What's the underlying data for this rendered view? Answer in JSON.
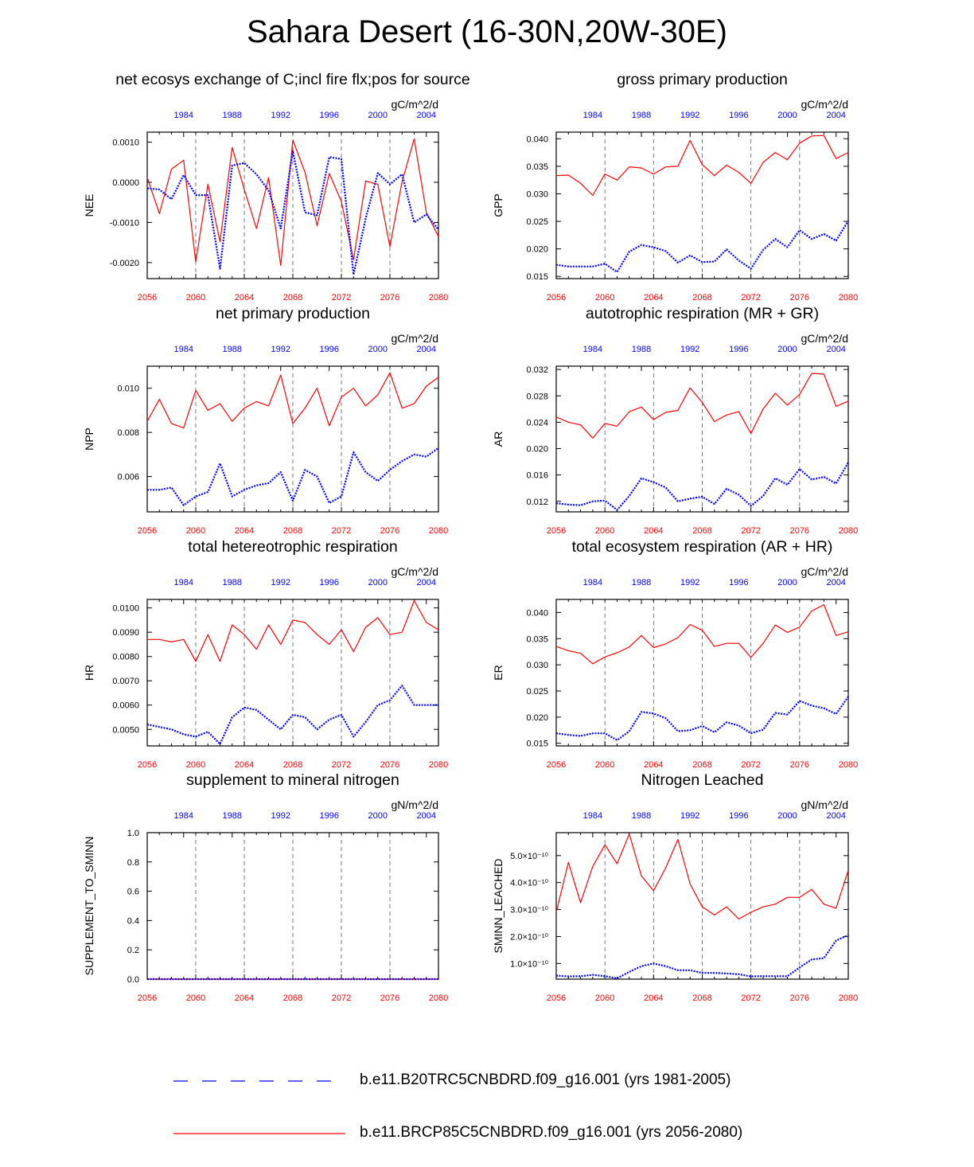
{
  "title": "Sahara Desert (16-30N,20W-30E)",
  "colors": {
    "future": "#ff0000",
    "historical": "#0000ff"
  },
  "legend": [
    {
      "label": "b.e11.B20TRC5CNBDRD.f09_g16.001 (yrs 1981-2005)",
      "color": "#0000ff",
      "style": "dashed"
    },
    {
      "label": "b.e11.BRCP85C5CNBDRD.f09_g16.001 (yrs 2056-2080)",
      "color": "#ff0000",
      "style": "solid"
    }
  ],
  "chart_data": [
    {
      "type": "line",
      "title": "net ecosys exchange of C;incl fire flx;pos for source",
      "ylabel": "NEE",
      "units": "gC/m^2/d",
      "xlim": [
        2056,
        2080
      ],
      "ylim": [
        -0.0024,
        0.00125
      ],
      "yticks": [
        0.001,
        0.0,
        -0.001,
        -0.002
      ],
      "yticklabels": [
        "0.0010",
        "0.0000",
        "-0.0010",
        "-0.0020"
      ],
      "xticks": [
        2056,
        2060,
        2064,
        2068,
        2072,
        2076,
        2080
      ],
      "top_ticks": [
        1984,
        1988,
        1992,
        1996,
        2000,
        2004
      ],
      "series": [
        {
          "name": "b.e11.BRCP85C5CNBDRD.f09_g16.001 (yrs 2056-2080)",
          "color": "#ff0000",
          "style": "solid",
          "values": [
            0.00012,
            -0.00078,
            0.00033,
            0.00055,
            -0.00198,
            -5e-05,
            -0.00148,
            0.00087,
            -0.00018,
            -0.00115,
            0.00012,
            -0.00207,
            0.00105,
            0.00025,
            -0.00108,
            0.00022,
            -0.00048,
            -0.00193,
            3e-05,
            -5e-05,
            -0.0016,
            2e-05,
            0.00108,
            -0.00075,
            -0.00135
          ]
        },
        {
          "name": "b.e11.B20TRC5CNBDRD.f09_g16.001 (yrs 1981-2005)",
          "color": "#0000ff",
          "style": "dashed",
          "values": [
            -0.00015,
            -0.00018,
            -0.00042,
            0.00018,
            -0.00032,
            -0.00032,
            -0.00215,
            0.00042,
            0.00048,
            0.0002,
            -0.0002,
            -0.00115,
            0.00078,
            -0.00075,
            -0.00082,
            0.00063,
            0.00058,
            -0.0023,
            -0.0009,
            0.00023,
            -5e-05,
            0.0002,
            -0.001,
            -0.0008,
            -0.00118
          ]
        }
      ]
    },
    {
      "type": "line",
      "title": "gross primary production",
      "ylabel": "GPP",
      "units": "gC/m^2/d",
      "xlim": [
        2056,
        2080
      ],
      "ylim": [
        0.0146,
        0.0412
      ],
      "yticks": [
        0.04,
        0.035,
        0.03,
        0.025,
        0.02,
        0.015
      ],
      "yticklabels": [
        "0.040",
        "0.035",
        "0.030",
        "0.025",
        "0.020",
        "0.015"
      ],
      "xticks": [
        2056,
        2060,
        2064,
        2068,
        2072,
        2076,
        2080
      ],
      "top_ticks": [
        1984,
        1988,
        1992,
        1996,
        2000,
        2004
      ],
      "series": [
        {
          "name": "b.e11.BRCP85C5CNBDRD.f09_g16.001 (yrs 2056-2080)",
          "color": "#ff0000",
          "style": "solid",
          "values": [
            0.0333,
            0.0334,
            0.0319,
            0.0297,
            0.0336,
            0.0325,
            0.0349,
            0.0347,
            0.0336,
            0.0349,
            0.035,
            0.0397,
            0.0353,
            0.0333,
            0.0352,
            0.0339,
            0.0319,
            0.0357,
            0.0375,
            0.0362,
            0.0392,
            0.0405,
            0.0406,
            0.0364,
            0.0375
          ]
        },
        {
          "name": "b.e11.B20TRC5CNBDRD.f09_g16.001 (yrs 1981-2005)",
          "color": "#0000ff",
          "style": "dashed",
          "values": [
            0.0171,
            0.0168,
            0.0168,
            0.0168,
            0.0173,
            0.0158,
            0.0195,
            0.0207,
            0.0203,
            0.0196,
            0.0175,
            0.0188,
            0.0176,
            0.0177,
            0.0199,
            0.0179,
            0.0164,
            0.0198,
            0.0218,
            0.0203,
            0.0234,
            0.0218,
            0.0227,
            0.0215,
            0.0251
          ]
        }
      ]
    },
    {
      "type": "line",
      "title": "net primary production",
      "ylabel": "NPP",
      "units": "gC/m^2/d",
      "xlim": [
        2056,
        2080
      ],
      "ylim": [
        0.0044,
        0.011
      ],
      "yticks": [
        0.01,
        0.008,
        0.006
      ],
      "yticklabels": [
        "0.010",
        "0.008",
        "0.006"
      ],
      "xticks": [
        2056,
        2060,
        2064,
        2068,
        2072,
        2076,
        2080
      ],
      "top_ticks": [
        1984,
        1988,
        1992,
        1996,
        2000,
        2004
      ],
      "series": [
        {
          "name": "b.e11.BRCP85C5CNBDRD.f09_g16.001 (yrs 2056-2080)",
          "color": "#ff0000",
          "style": "solid",
          "values": [
            0.0085,
            0.0095,
            0.0084,
            0.0082,
            0.0099,
            0.009,
            0.0093,
            0.0085,
            0.0091,
            0.0094,
            0.0092,
            0.0106,
            0.0084,
            0.0091,
            0.01,
            0.0083,
            0.0096,
            0.01,
            0.0092,
            0.0097,
            0.0107,
            0.0091,
            0.0093,
            0.0101,
            0.0105
          ]
        },
        {
          "name": "b.e11.B20TRC5CNBDRD.f09_g16.001 (yrs 1981-2005)",
          "color": "#0000ff",
          "style": "dashed",
          "values": [
            0.0054,
            0.0054,
            0.0055,
            0.0047,
            0.0051,
            0.0053,
            0.0066,
            0.0051,
            0.0054,
            0.0056,
            0.0057,
            0.0062,
            0.0049,
            0.0063,
            0.006,
            0.0048,
            0.0051,
            0.0071,
            0.0062,
            0.0058,
            0.0063,
            0.0067,
            0.007,
            0.0069,
            0.0073
          ]
        }
      ]
    },
    {
      "type": "line",
      "title": "autotrophic respiration (MR + GR)",
      "ylabel": "AR",
      "units": "gC/m^2/d",
      "xlim": [
        2056,
        2080
      ],
      "ylim": [
        0.0104,
        0.0325
      ],
      "yticks": [
        0.032,
        0.028,
        0.024,
        0.02,
        0.016,
        0.012
      ],
      "yticklabels": [
        "0.032",
        "0.028",
        "0.024",
        "0.020",
        "0.016",
        "0.012"
      ],
      "xticks": [
        2056,
        2060,
        2064,
        2068,
        2072,
        2076,
        2080
      ],
      "top_ticks": [
        1984,
        1988,
        1992,
        1996,
        2000,
        2004
      ],
      "series": [
        {
          "name": "b.e11.BRCP85C5CNBDRD.f09_g16.001 (yrs 2056-2080)",
          "color": "#ff0000",
          "style": "solid",
          "values": [
            0.0248,
            0.024,
            0.0236,
            0.0216,
            0.0238,
            0.0234,
            0.0256,
            0.0263,
            0.0244,
            0.0255,
            0.0258,
            0.0292,
            0.027,
            0.0241,
            0.0251,
            0.0256,
            0.0223,
            0.026,
            0.0284,
            0.0266,
            0.0282,
            0.0314,
            0.0313,
            0.0264,
            0.0272
          ]
        },
        {
          "name": "b.e11.B20TRC5CNBDRD.f09_g16.001 (yrs 1981-2005)",
          "color": "#0000ff",
          "style": "dashed",
          "values": [
            0.0117,
            0.0115,
            0.0114,
            0.012,
            0.0121,
            0.0107,
            0.0128,
            0.0155,
            0.0149,
            0.0141,
            0.012,
            0.0124,
            0.0127,
            0.0116,
            0.0139,
            0.013,
            0.0113,
            0.0128,
            0.0155,
            0.0145,
            0.0169,
            0.0153,
            0.0157,
            0.0147,
            0.0179
          ]
        }
      ]
    },
    {
      "type": "line",
      "title": "total hetereotrophic respiration",
      "ylabel": "HR",
      "units": "gC/m^2/d",
      "xlim": [
        2056,
        2080
      ],
      "ylim": [
        0.00432,
        0.01035
      ],
      "yticks": [
        0.01,
        0.009,
        0.008,
        0.007,
        0.006,
        0.005
      ],
      "yticklabels": [
        "0.0100",
        "0.0090",
        "0.0080",
        "0.0070",
        "0.0060",
        "0.0050"
      ],
      "xticks": [
        2056,
        2060,
        2064,
        2068,
        2072,
        2076,
        2080
      ],
      "top_ticks": [
        1984,
        1988,
        1992,
        1996,
        2000,
        2004
      ],
      "series": [
        {
          "name": "b.e11.BRCP85C5CNBDRD.f09_g16.001 (yrs 2056-2080)",
          "color": "#ff0000",
          "style": "solid",
          "values": [
            0.0087,
            0.0087,
            0.0086,
            0.0087,
            0.0078,
            0.0089,
            0.0078,
            0.0093,
            0.0089,
            0.0083,
            0.0093,
            0.0085,
            0.0095,
            0.0094,
            0.0089,
            0.0085,
            0.0091,
            0.0082,
            0.0092,
            0.0096,
            0.0089,
            0.009,
            0.0103,
            0.0094,
            0.0091
          ]
        },
        {
          "name": "b.e11.B20TRC5CNBDRD.f09_g16.001 (yrs 1981-2005)",
          "color": "#0000ff",
          "style": "dashed",
          "values": [
            0.0052,
            0.0051,
            0.005,
            0.0048,
            0.0047,
            0.0049,
            0.0044,
            0.0055,
            0.0059,
            0.0058,
            0.0054,
            0.005,
            0.0056,
            0.0055,
            0.005,
            0.0054,
            0.0056,
            0.0047,
            0.0053,
            0.006,
            0.0062,
            0.0068,
            0.006,
            0.006,
            0.006
          ]
        }
      ]
    },
    {
      "type": "line",
      "title": "total ecosystem respiration (AR + HR)",
      "ylabel": "ER",
      "units": "gC/m^2/d",
      "xlim": [
        2056,
        2080
      ],
      "ylim": [
        0.0145,
        0.0425
      ],
      "yticks": [
        0.04,
        0.035,
        0.03,
        0.025,
        0.02,
        0.015
      ],
      "yticklabels": [
        "0.040",
        "0.035",
        "0.030",
        "0.025",
        "0.020",
        "0.015"
      ],
      "xticks": [
        2056,
        2060,
        2064,
        2068,
        2072,
        2076,
        2080
      ],
      "top_ticks": [
        1984,
        1988,
        1992,
        1996,
        2000,
        2004
      ],
      "series": [
        {
          "name": "b.e11.BRCP85C5CNBDRD.f09_g16.001 (yrs 2056-2080)",
          "color": "#ff0000",
          "style": "solid",
          "values": [
            0.0335,
            0.0327,
            0.0322,
            0.0302,
            0.0315,
            0.0323,
            0.0334,
            0.0356,
            0.0333,
            0.034,
            0.0352,
            0.0377,
            0.0366,
            0.0335,
            0.0341,
            0.0341,
            0.0314,
            0.0341,
            0.0376,
            0.0362,
            0.0372,
            0.0403,
            0.0415,
            0.0356,
            0.0363
          ]
        },
        {
          "name": "b.e11.B20TRC5CNBDRD.f09_g16.001 (yrs 1981-2005)",
          "color": "#0000ff",
          "style": "dashed",
          "values": [
            0.0169,
            0.0166,
            0.0164,
            0.0169,
            0.0169,
            0.0156,
            0.0173,
            0.021,
            0.0207,
            0.0198,
            0.0173,
            0.0175,
            0.0183,
            0.0171,
            0.019,
            0.0184,
            0.0169,
            0.0176,
            0.0208,
            0.0205,
            0.0231,
            0.0222,
            0.0217,
            0.0206,
            0.0239
          ]
        }
      ]
    },
    {
      "type": "line",
      "title": "supplement to mineral nitrogen",
      "ylabel": "SUPPLEMENT_TO_SMINN",
      "units": "gN/m^2/d",
      "xlim": [
        2056,
        2080
      ],
      "ylim": [
        0.0,
        1.0
      ],
      "yticks": [
        1.0,
        0.8,
        0.6,
        0.4,
        0.2,
        0.0
      ],
      "yticklabels": [
        "1.0",
        "0.8",
        "0.6",
        "0.4",
        "0.2",
        "0.0"
      ],
      "xticks": [
        2056,
        2060,
        2064,
        2068,
        2072,
        2076,
        2080
      ],
      "top_ticks": [
        1984,
        1988,
        1992,
        1996,
        2000,
        2004
      ],
      "series": [
        {
          "name": "b.e11.BRCP85C5CNBDRD.f09_g16.001 (yrs 2056-2080)",
          "color": "#ff0000",
          "style": "solid",
          "values": [
            0,
            0,
            0,
            0,
            0,
            0,
            0,
            0,
            0,
            0,
            0,
            0,
            0,
            0,
            0,
            0,
            0,
            0,
            0,
            0,
            0,
            0,
            0,
            0,
            0
          ]
        },
        {
          "name": "b.e11.B20TRC5CNBDRD.f09_g16.001 (yrs 1981-2005)",
          "color": "#0000ff",
          "style": "dashed",
          "values": [
            0,
            0,
            0,
            0,
            0,
            0,
            0,
            0,
            0,
            0,
            0,
            0,
            0,
            0,
            0,
            0,
            0,
            0,
            0,
            0,
            0,
            0,
            0,
            0,
            0
          ]
        }
      ]
    },
    {
      "type": "line",
      "title": "Nitrogen Leached",
      "ylabel": "SMINN_LEACHED",
      "units": "gN/m^2/d",
      "xlim": [
        2056,
        2080
      ],
      "ylim": [
        4.2e-11,
        5.85e-10
      ],
      "yticks": [
        5e-10,
        4e-10,
        3e-10,
        2e-10,
        1e-10
      ],
      "yticklabels": [
        "5.0×10⁻¹⁰",
        "4.0×10⁻¹⁰",
        "3.0×10⁻¹⁰",
        "2.0×10⁻¹⁰",
        "1.0×10⁻¹⁰"
      ],
      "xticks": [
        2056,
        2060,
        2064,
        2068,
        2072,
        2076,
        2080
      ],
      "top_ticks": [
        1984,
        1988,
        1992,
        1996,
        2000,
        2004
      ],
      "series": [
        {
          "name": "b.e11.BRCP85C5CNBDRD.f09_g16.001 (yrs 2056-2080)",
          "color": "#ff0000",
          "style": "solid",
          "values": [
            2.9e-10,
            4.75e-10,
            3.25e-10,
            4.6e-10,
            5.4e-10,
            4.7e-10,
            5.8e-10,
            4.25e-10,
            3.7e-10,
            4.55e-10,
            5.6e-10,
            3.95e-10,
            3.1e-10,
            2.8e-10,
            3.1e-10,
            2.65e-10,
            2.9e-10,
            3.1e-10,
            3.2e-10,
            3.45e-10,
            3.45e-10,
            3.75e-10,
            3.2e-10,
            3.05e-10,
            4.45e-10
          ]
        },
        {
          "name": "b.e11.B20TRC5CNBDRD.f09_g16.001 (yrs 1981-2005)",
          "color": "#0000ff",
          "style": "dashed",
          "values": [
            5.5e-11,
            5.2e-11,
            5.3e-11,
            5.8e-11,
            5.3e-11,
            4.5e-11,
            6.9e-11,
            9e-11,
            1e-10,
            9e-11,
            7.5e-11,
            7.5e-11,
            6.5e-11,
            6.5e-11,
            6.3e-11,
            6e-11,
            5.2e-11,
            5.3e-11,
            5.3e-11,
            5.3e-11,
            8.5e-11,
            1.15e-10,
            1.2e-10,
            1.85e-10,
            2.05e-10
          ]
        }
      ]
    }
  ]
}
